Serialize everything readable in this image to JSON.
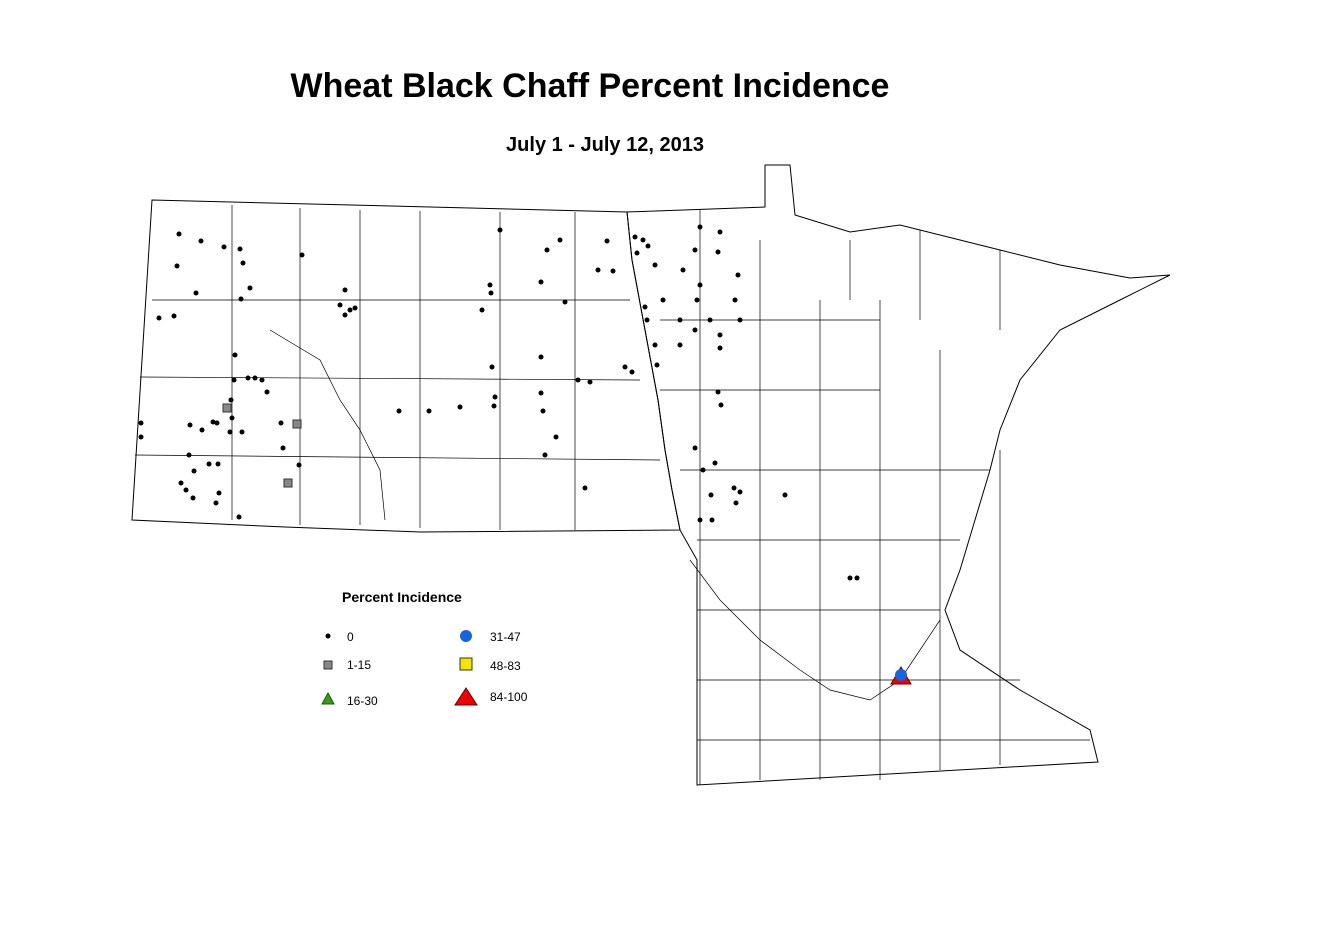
{
  "header": {
    "title": "Wheat Black Chaff Percent Incidence",
    "subtitle": "July 1 - July 12, 2013"
  },
  "legend": {
    "title": "Percent Incidence",
    "items": [
      {
        "label": "0"
      },
      {
        "label": "1-15"
      },
      {
        "label": "16-30"
      },
      {
        "label": "31-47"
      },
      {
        "label": "48-83"
      },
      {
        "label": "84-100"
      }
    ]
  }
}
